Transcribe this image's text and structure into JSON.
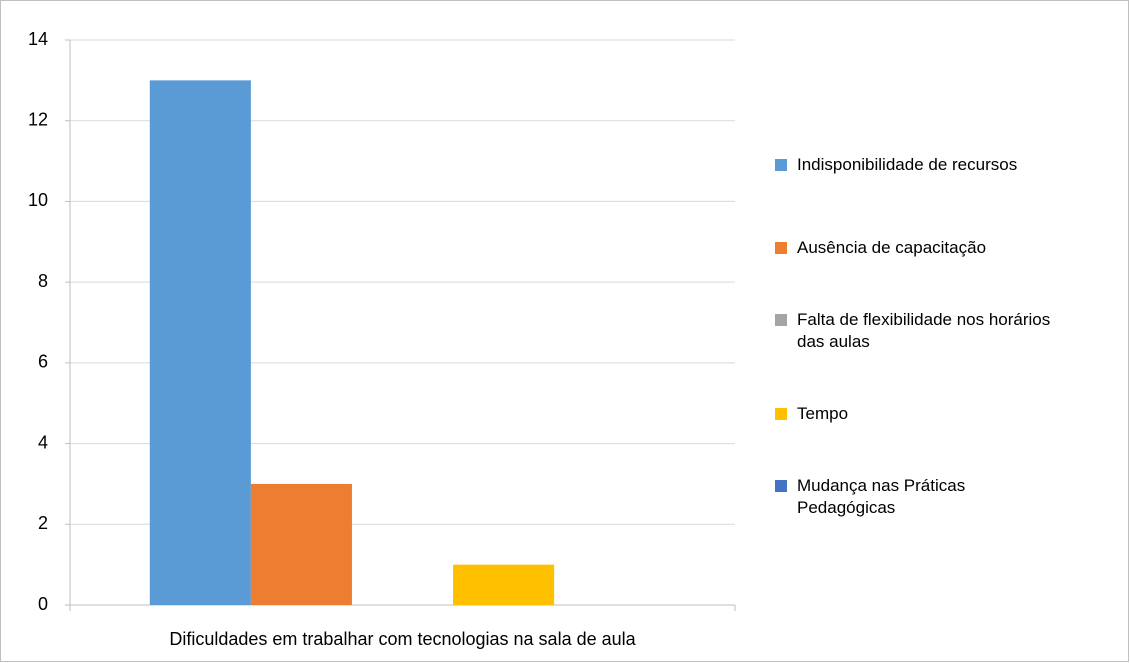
{
  "chart_data": {
    "type": "bar",
    "categories": [
      "Dificuldades em trabalhar com tecnologias na sala de aula"
    ],
    "series": [
      {
        "name": "Indisponibilidade de recursos",
        "color": "#5b9bd5",
        "values": [
          13
        ]
      },
      {
        "name": "Ausência de capacitação",
        "color": "#ed7d31",
        "values": [
          3
        ]
      },
      {
        "name": "Falta de flexibilidade nos horários das aulas",
        "color": "#a5a5a5",
        "values": [
          0
        ]
      },
      {
        "name": "Tempo",
        "color": "#ffc000",
        "values": [
          1
        ]
      },
      {
        "name": "Mudança nas Práticas Pedagógicas",
        "color": "#4472c4",
        "values": [
          0
        ]
      }
    ],
    "ylim": [
      0,
      14
    ],
    "yticks": [
      0,
      2,
      4,
      6,
      8,
      10,
      12,
      14
    ],
    "grid": true,
    "legend": "right"
  }
}
